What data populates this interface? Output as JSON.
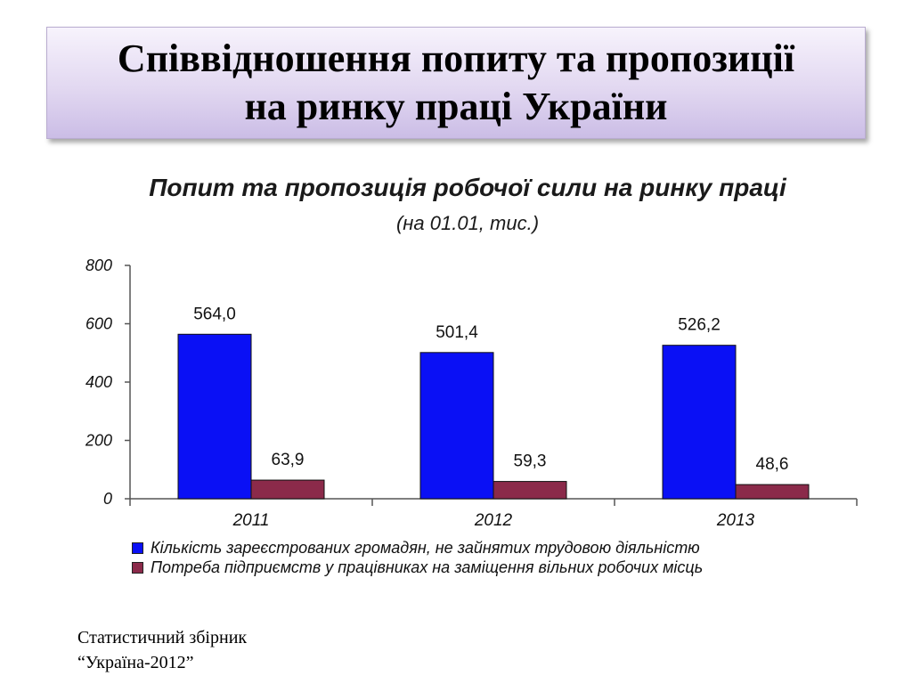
{
  "slide": {
    "title_line1": "Співвідношення попиту та пропозиції",
    "title_line2": "на ринку праці України"
  },
  "source": {
    "line1": "Статистичний збірник",
    "line2": "“Україна-2012”"
  },
  "colors": {
    "series1": "#0a10f5",
    "series2": "#8b2a4a"
  },
  "chart_data": {
    "type": "bar",
    "title": "Попит та пропозиція робочої сили на ринку праці",
    "subtitle": "(на 01.01, тис.)",
    "categories": [
      "2011",
      "2012",
      "2013"
    ],
    "series": [
      {
        "name": "Кількість зареєстрованих громадян, не зайнятих трудовою діяльністю",
        "values": [
          564.0,
          501.4,
          526.2
        ],
        "labels": [
          "564,0",
          "501,4",
          "526,2"
        ]
      },
      {
        "name": "Потреба підприємств у працівниках на заміщення вільних робочих місць",
        "values": [
          63.9,
          59.3,
          48.6
        ],
        "labels": [
          "63,9",
          "59,3",
          "48,6"
        ]
      }
    ],
    "ylim": [
      0,
      800
    ],
    "yticks": [
      "0",
      "200",
      "400",
      "600",
      "800"
    ],
    "grid": false,
    "legend": "bottom"
  }
}
